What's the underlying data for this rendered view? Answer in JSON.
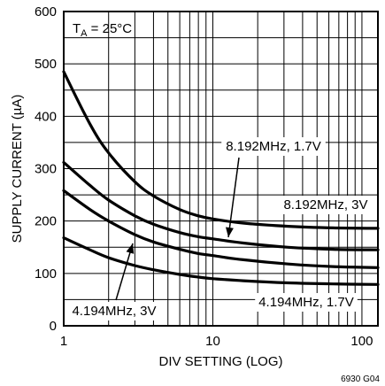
{
  "chart_data": {
    "type": "line",
    "title": "",
    "condition": {
      "main": "T",
      "sub": "A",
      "rest": " = 25°C"
    },
    "xlabel": "DIV SETTING (LOG)",
    "ylabel": "SUPPLY CURRENT (µA)",
    "xscale": "log",
    "xlim": [
      1,
      128
    ],
    "ylim": [
      0,
      600
    ],
    "xticks": [
      1,
      10,
      100
    ],
    "yticks": [
      0,
      100,
      200,
      300,
      400,
      500,
      600
    ],
    "grid": true,
    "x": [
      1,
      1.5,
      2,
      3,
      4,
      6,
      8,
      10,
      16,
      32,
      64,
      128
    ],
    "series": [
      {
        "name": "8.192MHz, 3V",
        "values": [
          485,
          385,
          330,
          275,
          248,
          222,
          210,
          204,
          196,
          190,
          187,
          186
        ]
      },
      {
        "name": "8.192MHz, 1.7V",
        "values": [
          312,
          268,
          240,
          210,
          194,
          178,
          170,
          166,
          158,
          150,
          146,
          145
        ]
      },
      {
        "name": "4.194MHz, 3V",
        "values": [
          258,
          222,
          200,
          174,
          160,
          146,
          138,
          134,
          126,
          118,
          113,
          111
        ]
      },
      {
        "name": "4.194MHz, 1.7V",
        "values": [
          168,
          145,
          130,
          115,
          107,
          98,
          93,
          90,
          86,
          82,
          80,
          79
        ]
      }
    ],
    "annotations": [
      {
        "label": "8.192MHz, 1.7V",
        "x": 2.1,
        "y": 175
      },
      {
        "label": "8.192MHz, 3V",
        "x": 11.0,
        "y": 162
      },
      {
        "label": "4.194MHz, 3V",
        "x": 3.0,
        "y": 145
      },
      {
        "label": "4.194MHz, 1.7V",
        "x": 9.3,
        "y": 104
      }
    ]
  },
  "figure_id": "6930 G04"
}
